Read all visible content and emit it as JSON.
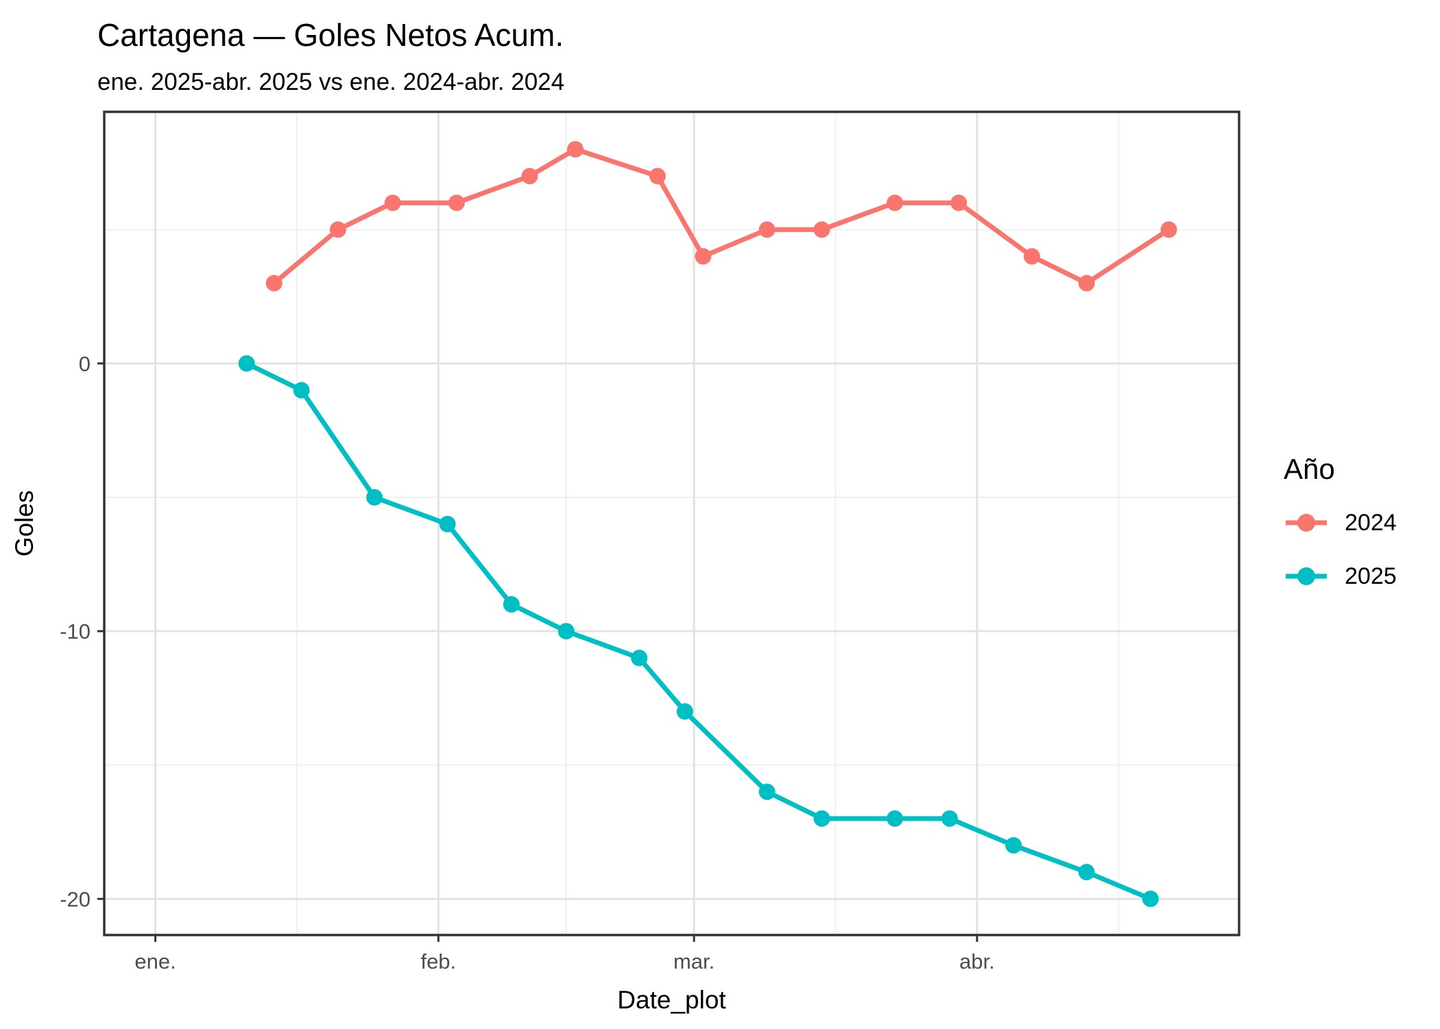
{
  "header": {
    "title": "Cartagena — Goles Netos Acum.",
    "subtitle": "ene. 2025-abr. 2025 vs ene. 2024-abr. 2024"
  },
  "axes": {
    "x_title": "Date_plot",
    "y_title": "Goles"
  },
  "legend": {
    "title": "Año",
    "position": "right"
  },
  "chart_data": {
    "type": "line",
    "title": "Cartagena — Goles Netos Acum.",
    "subtitle": "ene. 2025-abr. 2025 vs ene. 2024-abr. 2024",
    "xlabel": "Date_plot",
    "ylabel": "Goles",
    "grid": true,
    "legend_title": "Año",
    "legend_position": "right",
    "x_unit": "day offset from Jan 1 (axis shows month starts)",
    "x_domain_days": [
      -5.6,
      118.7
    ],
    "x_ticks": [
      {
        "label": "ene.",
        "day": 0
      },
      {
        "label": "feb.",
        "day": 31
      },
      {
        "label": "mar.",
        "day": 59
      },
      {
        "label": "abr.",
        "day": 90
      }
    ],
    "x_minor_days": [
      15.5,
      45,
      74.5,
      105.5
    ],
    "y_domain": [
      -21.35,
      9.4
    ],
    "y_ticks": [
      {
        "label": "0",
        "value": 0
      },
      {
        "label": "-10",
        "value": -10
      },
      {
        "label": "-20",
        "value": -20
      }
    ],
    "y_minor": [
      5,
      -5,
      -15
    ],
    "series": [
      {
        "name": "2024",
        "color": "#F8766D",
        "points": [
          {
            "day": 13,
            "value": 3
          },
          {
            "day": 20,
            "value": 5
          },
          {
            "day": 26,
            "value": 6
          },
          {
            "day": 33,
            "value": 6
          },
          {
            "day": 41,
            "value": 7
          },
          {
            "day": 46,
            "value": 8
          },
          {
            "day": 55,
            "value": 7
          },
          {
            "day": 60,
            "value": 4
          },
          {
            "day": 67,
            "value": 5
          },
          {
            "day": 73,
            "value": 5
          },
          {
            "day": 81,
            "value": 6
          },
          {
            "day": 88,
            "value": 6
          },
          {
            "day": 96,
            "value": 4
          },
          {
            "day": 102,
            "value": 3
          },
          {
            "day": 111,
            "value": 5
          }
        ]
      },
      {
        "name": "2025",
        "color": "#00BFC4",
        "points": [
          {
            "day": 10,
            "value": 0
          },
          {
            "day": 16,
            "value": -1
          },
          {
            "day": 24,
            "value": -5
          },
          {
            "day": 32,
            "value": -6
          },
          {
            "day": 39,
            "value": -9
          },
          {
            "day": 45,
            "value": -10
          },
          {
            "day": 53,
            "value": -11
          },
          {
            "day": 58,
            "value": -13
          },
          {
            "day": 67,
            "value": -16
          },
          {
            "day": 73,
            "value": -17
          },
          {
            "day": 81,
            "value": -17
          },
          {
            "day": 87,
            "value": -17
          },
          {
            "day": 94,
            "value": -18
          },
          {
            "day": 102,
            "value": -19
          },
          {
            "day": 109,
            "value": -20
          }
        ]
      }
    ],
    "styles": {
      "panel_border_color": "#333333",
      "major_grid_color": "#E2E2E2",
      "minor_grid_color": "#F0F0F0",
      "tick_color": "#333333",
      "tick_label_color": "#4D4D4D"
    }
  }
}
